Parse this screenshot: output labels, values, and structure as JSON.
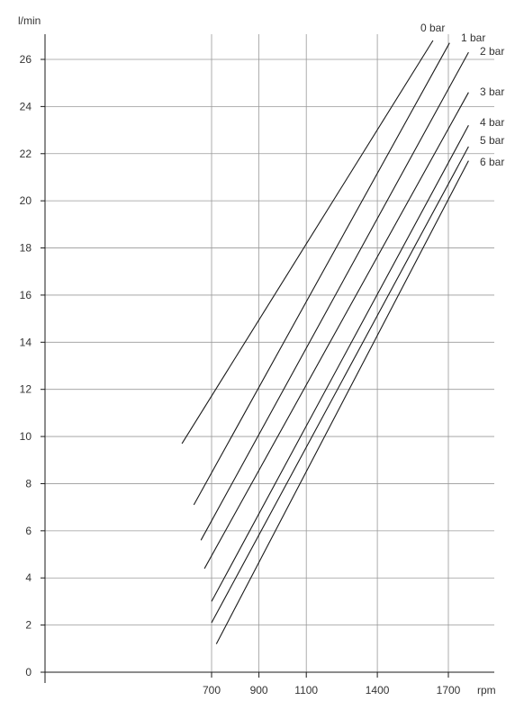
{
  "chart_data": {
    "type": "line",
    "title": "",
    "xlabel": "rpm",
    "ylabel": "l/min",
    "xlim": [
      350,
      1800
    ],
    "ylim": [
      0,
      27.2
    ],
    "x_ticks": [
      700,
      900,
      1100,
      1400,
      1700
    ],
    "x_tick_labels": [
      "700",
      "900",
      "1100",
      "1400",
      "1700"
    ],
    "y_ticks": [
      0,
      2,
      4,
      6,
      8,
      10,
      12,
      14,
      16,
      18,
      20,
      22,
      24,
      26
    ],
    "y_tick_labels": [
      "0",
      "2",
      "4",
      "6",
      "8",
      "10",
      "12",
      "14",
      "16",
      "18",
      "20",
      "22",
      "24",
      "26"
    ],
    "grid": true,
    "legend": "series labels at line ends, top-right",
    "colors": {
      "line": "#1a1a1a",
      "grid": "#9a9a9a",
      "axis": "#1a1a1a",
      "text": "#333333"
    },
    "series": [
      {
        "name": "0 bar",
        "x": [
          575,
          1635
        ],
        "y": [
          9.7,
          26.8
        ]
      },
      {
        "name": "1 bar",
        "x": [
          625,
          1705
        ],
        "y": [
          7.1,
          26.7
        ]
      },
      {
        "name": "2 bar",
        "x": [
          655,
          1785
        ],
        "y": [
          5.6,
          26.3
        ]
      },
      {
        "name": "3 bar",
        "x": [
          670,
          1785
        ],
        "y": [
          4.4,
          24.6
        ]
      },
      {
        "name": "4 bar",
        "x": [
          700,
          1785
        ],
        "y": [
          3.0,
          23.2
        ]
      },
      {
        "name": "5 bar",
        "x": [
          700,
          1785
        ],
        "y": [
          2.1,
          22.3
        ]
      },
      {
        "name": "6 bar",
        "x": [
          720,
          1785
        ],
        "y": [
          1.2,
          21.7
        ]
      }
    ]
  }
}
